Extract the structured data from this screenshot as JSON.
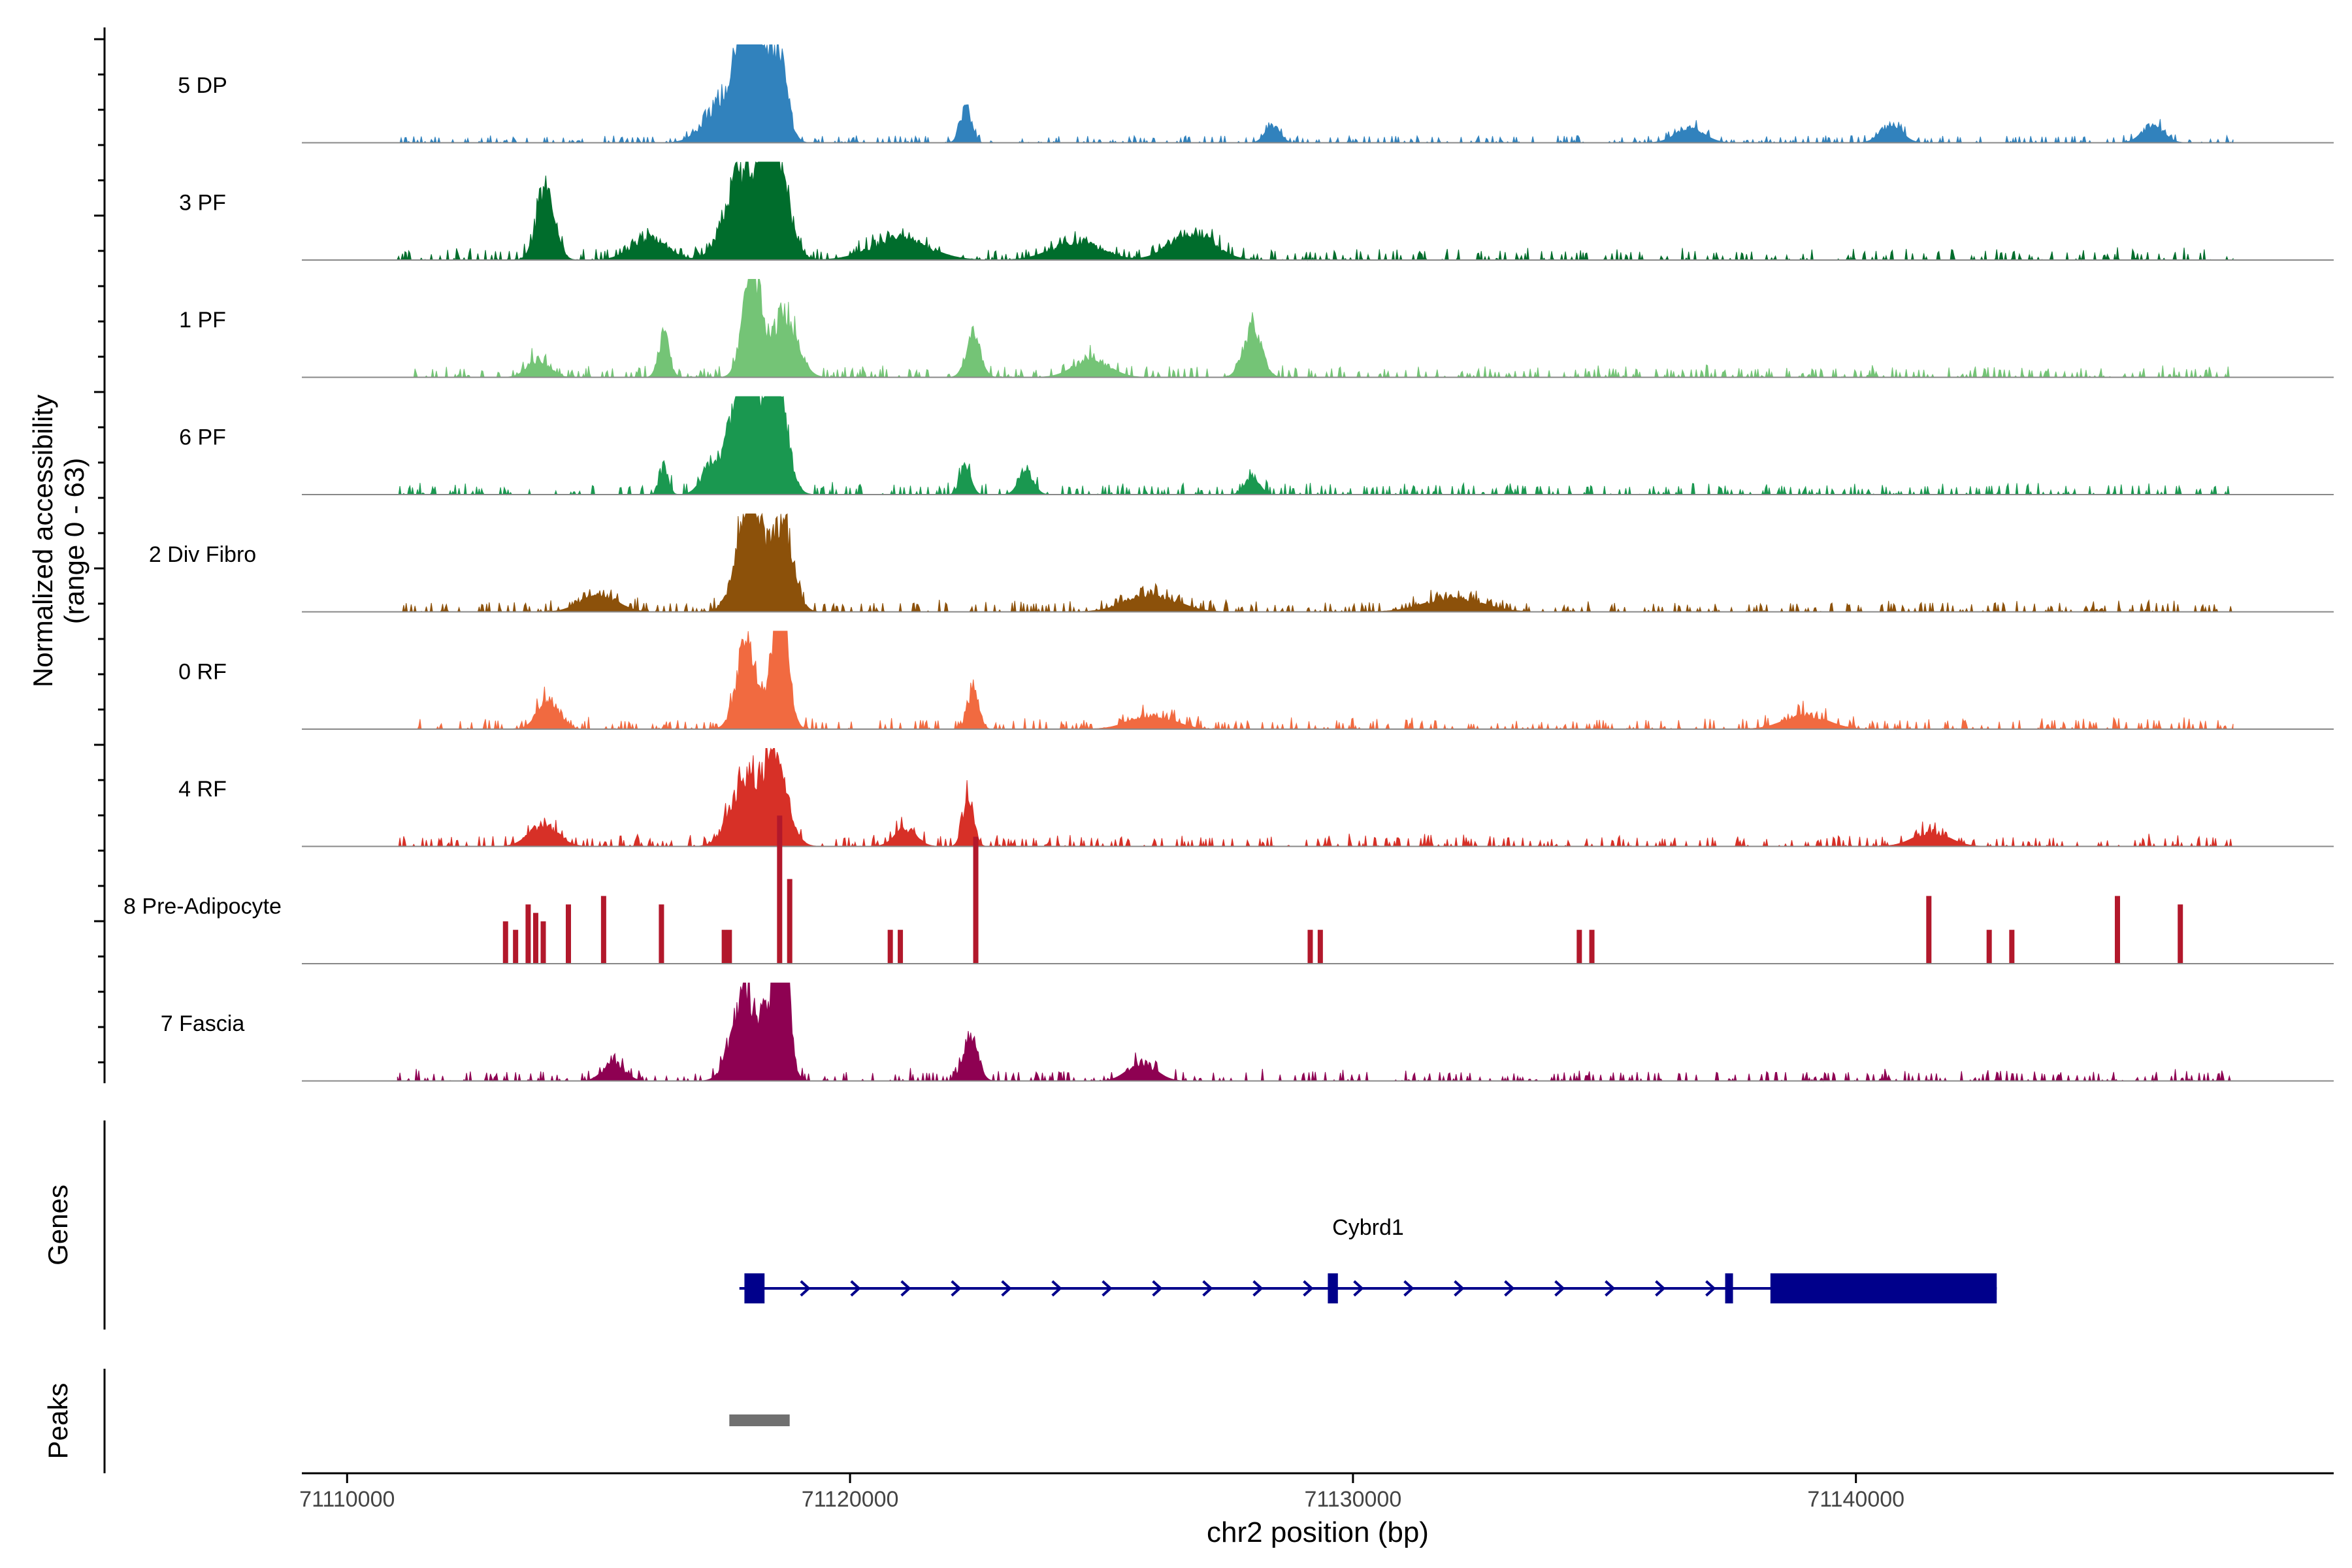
{
  "chart_data": {
    "type": "area",
    "title": "",
    "ylabel_line1": "Normalized accessibility",
    "ylabel_line2": "(range 0 - 63)",
    "xlabel": "chr2 position (bp)",
    "xlim": [
      71109100,
      71149500
    ],
    "x_ticks": [
      71110000,
      71120000,
      71130000,
      71140000
    ],
    "x_tick_labels": [
      "71110000",
      "71120000",
      "71130000",
      "71140000"
    ],
    "y_range": [
      0,
      63
    ],
    "series": [
      {
        "name": "5 DP",
        "color": "#3182BD",
        "track_end": 71147500,
        "peaks": [
          [
            71118000,
            45,
            300
          ],
          [
            71118550,
            28,
            250
          ],
          [
            71117500,
            12,
            500
          ],
          [
            71122300,
            10,
            150
          ],
          [
            71128400,
            5,
            200
          ],
          [
            71140700,
            5,
            300
          ],
          [
            71145900,
            5,
            300
          ],
          [
            71136700,
            4,
            400
          ]
        ],
        "noise": 2
      },
      {
        "name": "3 PF",
        "color": "#006D2C",
        "track_end": 71147500,
        "peaks": [
          [
            71113950,
            20,
            250
          ],
          [
            71117850,
            25,
            450
          ],
          [
            71118500,
            33,
            350
          ],
          [
            71126800,
            8,
            600
          ],
          [
            71116000,
            6,
            500
          ],
          [
            71121000,
            6,
            800
          ],
          [
            71124500,
            5,
            700
          ]
        ],
        "noise": 3
      },
      {
        "name": "1 PF",
        "color": "#74C476",
        "track_end": 71147500,
        "peaks": [
          [
            71118050,
            30,
            250
          ],
          [
            71118700,
            18,
            350
          ],
          [
            71116300,
            12,
            150
          ],
          [
            71122450,
            12,
            200
          ],
          [
            71128000,
            14,
            250
          ],
          [
            71113800,
            5,
            300
          ],
          [
            71124800,
            5,
            500
          ]
        ],
        "noise": 3
      },
      {
        "name": "6 PF",
        "color": "#1A9850",
        "track_end": 71147500,
        "peaks": [
          [
            71117900,
            45,
            300
          ],
          [
            71118500,
            40,
            300
          ],
          [
            71117300,
            10,
            300
          ],
          [
            71116300,
            8,
            120
          ],
          [
            71122300,
            8,
            150
          ],
          [
            71123500,
            7,
            200
          ],
          [
            71128000,
            5,
            200
          ]
        ],
        "noise": 3
      },
      {
        "name": "2 Div Fibro",
        "color": "#8C510A",
        "track_end": 71147500,
        "peaks": [
          [
            71118000,
            32,
            350
          ],
          [
            71118650,
            25,
            300
          ],
          [
            71115000,
            5,
            500
          ],
          [
            71126000,
            5,
            700
          ],
          [
            71132000,
            4,
            800
          ]
        ],
        "noise": 3
      },
      {
        "name": "0 RF",
        "color": "#F16A40",
        "track_end": 71147500,
        "peaks": [
          [
            71117950,
            25,
            280
          ],
          [
            71118600,
            40,
            220
          ],
          [
            71114000,
            8,
            300
          ],
          [
            71122450,
            12,
            150
          ],
          [
            71126000,
            4,
            600
          ],
          [
            71139000,
            4,
            600
          ]
        ],
        "noise": 3
      },
      {
        "name": "4 RF",
        "color": "#D73027",
        "track_end": 71147500,
        "peaks": [
          [
            71117900,
            18,
            400
          ],
          [
            71118500,
            23,
            350
          ],
          [
            71122350,
            14,
            150
          ],
          [
            71113900,
            6,
            400
          ],
          [
            71121100,
            5,
            300
          ],
          [
            71141500,
            4,
            500
          ]
        ],
        "noise": 3
      },
      {
        "name": "8 Pre-Adipocyte",
        "color": "#B2182B",
        "track_end": 71147500,
        "sparse": true,
        "bars": [
          [
            71113150,
            10
          ],
          [
            71113350,
            8
          ],
          [
            71113600,
            14
          ],
          [
            71113750,
            12
          ],
          [
            71113900,
            10
          ],
          [
            71114400,
            14
          ],
          [
            71115100,
            16
          ],
          [
            71116250,
            14
          ],
          [
            71117500,
            8
          ],
          [
            71117600,
            8
          ],
          [
            71118600,
            35
          ],
          [
            71118800,
            20
          ],
          [
            71120800,
            8
          ],
          [
            71121000,
            8
          ],
          [
            71122500,
            30
          ],
          [
            71129150,
            8
          ],
          [
            71129350,
            8
          ],
          [
            71134500,
            8
          ],
          [
            71134750,
            8
          ],
          [
            71141450,
            16
          ],
          [
            71142650,
            8
          ],
          [
            71143100,
            8
          ],
          [
            71145200,
            16
          ],
          [
            71146450,
            14
          ]
        ]
      },
      {
        "name": "7 Fascia",
        "color": "#8E0152",
        "track_end": 71147500,
        "peaks": [
          [
            71117900,
            25,
            350
          ],
          [
            71118650,
            63,
            150
          ],
          [
            71118500,
            20,
            300
          ],
          [
            71122400,
            12,
            200
          ],
          [
            71115300,
            5,
            300
          ],
          [
            71125800,
            5,
            400
          ]
        ],
        "noise": 3
      }
    ],
    "gene": {
      "name": "Cybrd1",
      "strand": "+",
      "start": 71117800,
      "end": 71142800,
      "exons": [
        [
          71117900,
          71118300
        ],
        [
          71129500,
          71129700
        ],
        [
          71137400,
          71137550
        ],
        [
          71138300,
          71142800
        ]
      ]
    },
    "peak_regions": [
      [
        71117600,
        71118800
      ]
    ],
    "panel_labels": {
      "genes": "Genes",
      "peaks": "Peaks"
    }
  }
}
